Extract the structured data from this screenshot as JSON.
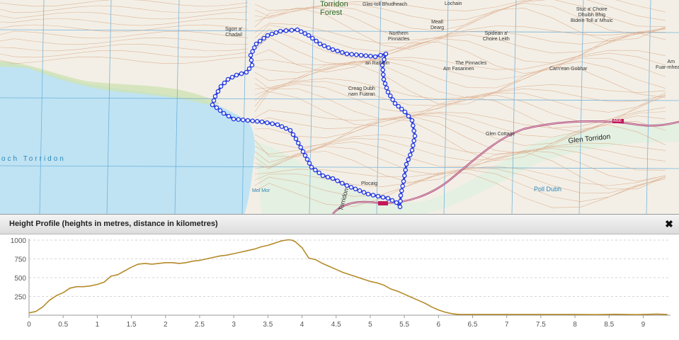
{
  "map": {
    "labels": {
      "torridon_forest": [
        "Torridon",
        "Forest"
      ],
      "loch_torridon": "och Torridon",
      "glen_torridon": "Glen Torridon",
      "poll_dubh": "Poll Dubh",
      "northern_pinnacles": [
        "Northern",
        "Pinnacles"
      ],
      "the_pinnacles": "The Pinnacles",
      "am_fasarinen": "Am Fasarinen",
      "meall_dearg": [
        "Meall",
        "Dearg"
      ],
      "spidean": [
        "Spidean a'",
        "Choire Leith"
      ],
      "an_rathain": "an Rathain",
      "creag_dubh": [
        "Creag Dubh",
        "nam Fuaran"
      ],
      "carn_gobhar": "Carn'ean Gobhar",
      "bidein": [
        "Stuc a' Choire",
        "Dhuibh Bhig",
        "Bidein Toll a' Mhuic"
      ],
      "glas_toll": "Glas-toll Bhudheach",
      "lochain": "Lochain",
      "spuim": [
        "Sgorr a'",
        "Chadail"
      ],
      "glen_cottage": "Glen Cottage",
      "road_number": "A896",
      "am_fuar": [
        "Am",
        "Fuar-mhealan"
      ],
      "torridon_road": "Torridon",
      "ploc": "Plocaig",
      "mol_mor": "Mol Mor"
    },
    "colors": {
      "water": "#bfe3f3",
      "land": "#f3efe6",
      "grid": "#5aa6d8",
      "contour": "#d9a27f",
      "road": "#a0366b",
      "route": "#2a3fe0"
    }
  },
  "panel": {
    "title": "Height Profile (heights in metres, distance in kilometres)",
    "close_icon": "close-icon"
  },
  "chart_data": {
    "type": "line",
    "title": "Height Profile (heights in metres, distance in kilometres)",
    "xlabel": "",
    "ylabel": "",
    "xlim": [
      0,
      9.4
    ],
    "ylim": [
      0,
      1000
    ],
    "x_ticks": [
      0,
      0.5,
      1,
      1.5,
      2,
      2.5,
      3,
      3.5,
      4,
      4.5,
      5,
      5.5,
      6,
      6.5,
      7,
      7.5,
      8,
      8.5,
      9
    ],
    "x_tick_labels": [
      "0",
      "0.5",
      "1",
      "1.5",
      "2",
      "2.5",
      "3",
      "3.5",
      "4",
      "4.5",
      "5",
      "5.5",
      "6",
      "6.5",
      "7",
      "7.5",
      "8",
      "8.5",
      "9"
    ],
    "y_ticks": [
      250,
      500,
      750,
      1000
    ],
    "y_tick_labels": [
      "250",
      "500",
      "750",
      "1000"
    ],
    "grid": true,
    "line_color": "#b58b2a",
    "series": [
      {
        "x": [
          0,
          0.1,
          0.2,
          0.3,
          0.4,
          0.5,
          0.6,
          0.7,
          0.8,
          0.9,
          1.0,
          1.1,
          1.2,
          1.3,
          1.4,
          1.5,
          1.6,
          1.7,
          1.8,
          1.9,
          2.0,
          2.1,
          2.2,
          2.3,
          2.4,
          2.5,
          2.6,
          2.7,
          2.8,
          2.9,
          3.0,
          3.1,
          3.2,
          3.3,
          3.4,
          3.5,
          3.6,
          3.7,
          3.8,
          3.85,
          3.9,
          4.0,
          4.1,
          4.2,
          4.3,
          4.4,
          4.5,
          4.6,
          4.7,
          4.8,
          4.9,
          5.0,
          5.1,
          5.2,
          5.3,
          5.4,
          5.5,
          5.6,
          5.7,
          5.8,
          5.9,
          6.0,
          6.1,
          6.2,
          6.3,
          6.5,
          7.0,
          7.5,
          8.0,
          8.3,
          8.6,
          8.9,
          9.2,
          9.35
        ],
        "y": [
          30,
          50,
          110,
          200,
          260,
          300,
          360,
          380,
          380,
          390,
          410,
          440,
          520,
          540,
          590,
          640,
          680,
          690,
          680,
          690,
          700,
          700,
          690,
          700,
          720,
          730,
          750,
          770,
          790,
          800,
          820,
          840,
          860,
          880,
          910,
          930,
          960,
          990,
          1005,
          1000,
          980,
          900,
          760,
          740,
          690,
          650,
          610,
          570,
          540,
          510,
          480,
          450,
          430,
          400,
          350,
          320,
          280,
          240,
          200,
          160,
          110,
          70,
          40,
          20,
          10,
          10,
          10,
          10,
          10,
          8,
          12,
          8,
          15,
          10
        ]
      }
    ]
  }
}
